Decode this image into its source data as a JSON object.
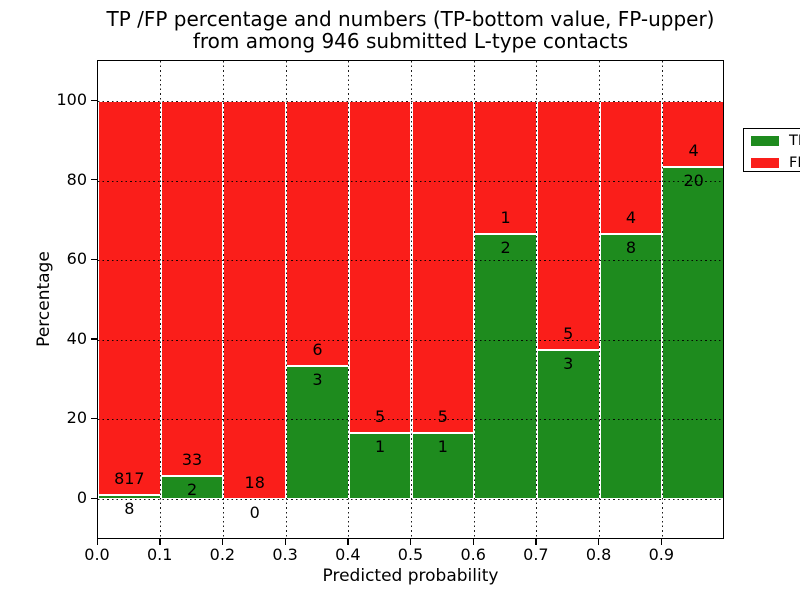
{
  "title": {
    "line1": "TP /FP percentage and numbers (TP-bottom value, FP-upper)",
    "line2": "from among 946 submitted L-type contacts"
  },
  "chart_data": {
    "type": "bar",
    "stacked": true,
    "normalized": "each bar normalized to 100%",
    "title": "TP /FP percentage and numbers (TP-bottom value, FP-upper) from among 946 submitted L-type contacts",
    "xlabel": "Predicted probability",
    "ylabel": "Percentage",
    "xlim": [
      0.0,
      1.0
    ],
    "ylim": [
      -10,
      110
    ],
    "grid": true,
    "legend_position": "upper right",
    "xtick_labels": [
      "0.0",
      "0.1",
      "0.2",
      "0.3",
      "0.4",
      "0.5",
      "0.6",
      "0.7",
      "0.8",
      "0.9"
    ],
    "ytick_values": [
      0,
      20,
      40,
      60,
      80,
      100
    ],
    "categories": [
      "0.0-0.1",
      "0.1-0.2",
      "0.2-0.3",
      "0.3-0.4",
      "0.4-0.5",
      "0.5-0.6",
      "0.6-0.7",
      "0.7-0.8",
      "0.8-0.9",
      "0.9-1.0"
    ],
    "series": [
      {
        "name": "TP",
        "color": "#1e8b1e",
        "values": [
          8,
          2,
          0,
          3,
          1,
          1,
          2,
          3,
          8,
          20
        ]
      },
      {
        "name": "FP",
        "color": "#fa1e1a",
        "values": [
          817,
          33,
          18,
          6,
          5,
          5,
          1,
          5,
          4,
          4
        ]
      }
    ],
    "tp_percent": [
      0.97,
      5.71,
      0.0,
      33.33,
      16.67,
      16.67,
      66.67,
      37.5,
      66.67,
      83.33
    ],
    "total_contacts": 946
  },
  "legend": {
    "entries": [
      {
        "label": "TP",
        "color": "#1e8b1e"
      },
      {
        "label": "FP",
        "color": "#fa1e1a"
      }
    ]
  },
  "colors": {
    "tp": "#1e8b1e",
    "fp": "#fa1e1a",
    "background": "#ffffff",
    "text": "#000000",
    "grid": "#000000"
  }
}
